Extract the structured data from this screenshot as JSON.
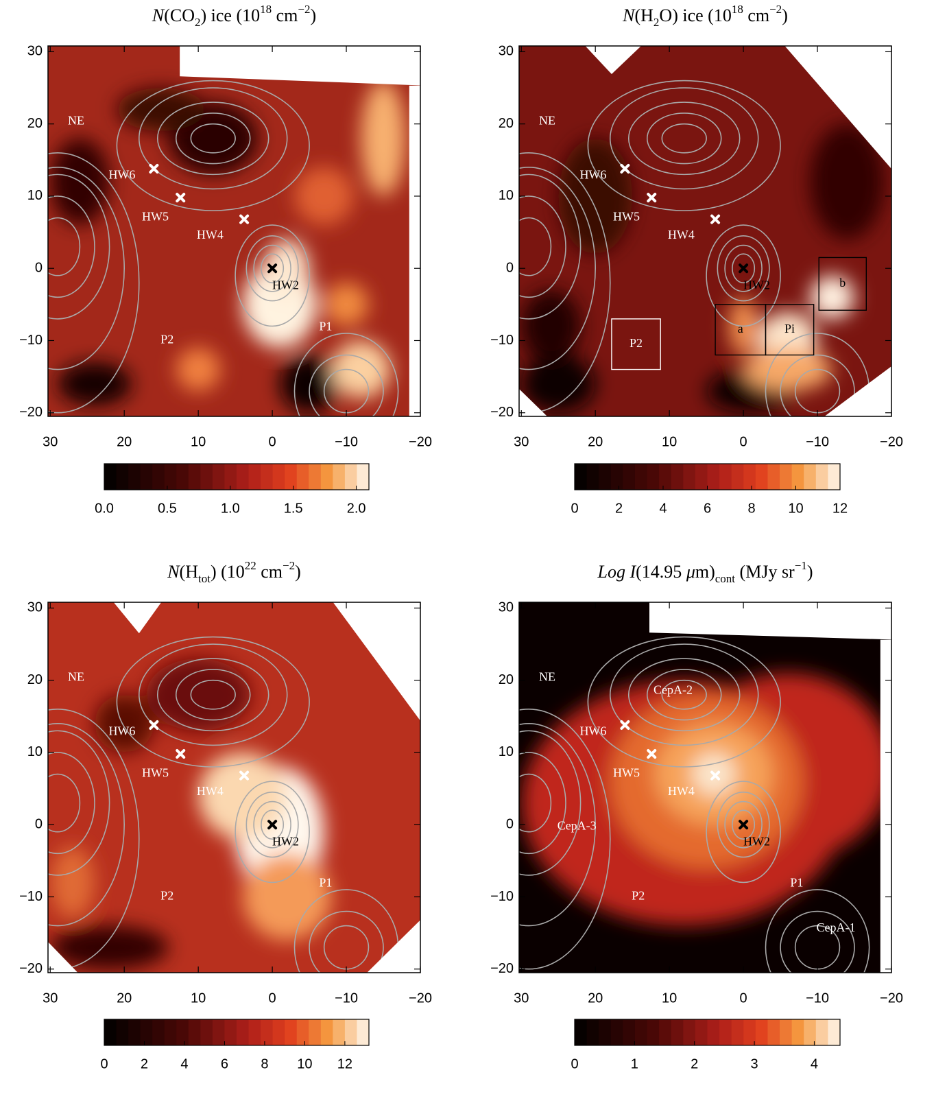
{
  "chart_data": [
    {
      "type": "heatmap",
      "title": [
        {
          "text": "N",
          "style": "italic"
        },
        {
          "text": "(CO",
          "style": "normal"
        },
        {
          "text": "2",
          "style": "sub"
        },
        {
          "text": ") ice (10",
          "style": "normal"
        },
        {
          "text": "18",
          "style": "sup"
        },
        {
          "text": " cm",
          "style": "normal"
        },
        {
          "text": "−2",
          "style": "sup"
        },
        {
          "text": ")",
          "style": "normal"
        }
      ],
      "xlim": [
        30.3,
        -20.0
      ],
      "ylim": [
        -20.5,
        30.8
      ],
      "xticks": [
        30,
        20,
        10,
        0,
        {
          "value": -10,
          "label": "−10"
        },
        {
          "value": -20,
          "label": "−20"
        }
      ],
      "yticks": [
        30,
        20,
        10,
        0,
        {
          "value": -10,
          "label": "−10"
        },
        {
          "value": -20,
          "label": "−20"
        }
      ],
      "colorbar": {
        "lim": [
          0,
          2.1
        ],
        "ticks": [
          {
            "value": 0,
            "label": "0.0"
          },
          0.5,
          {
            "value": 1,
            "label": "1.0"
          },
          1.5,
          {
            "value": 2,
            "label": "2.0"
          }
        ]
      },
      "markers": [
        {
          "x": 0,
          "y": 0,
          "color": "#000000"
        },
        {
          "x": 3.8,
          "y": 6.8,
          "color": "#ffffff"
        },
        {
          "x": 12.4,
          "y": 9.8,
          "color": "#ffffff"
        },
        {
          "x": 16,
          "y": 13.8,
          "color": "#ffffff"
        }
      ],
      "labels": [
        {
          "text": "NE",
          "x": 26.5,
          "y": 20.3,
          "color": "#ffffff"
        },
        {
          "text": "HW6",
          "x": 20.3,
          "y": 12.8,
          "color": "#ffffff"
        },
        {
          "text": "HW5",
          "x": 15.8,
          "y": 7,
          "color": "#ffffff"
        },
        {
          "text": "HW4",
          "x": 8.4,
          "y": 4.5,
          "color": "#ffffff"
        },
        {
          "text": "HW2",
          "x": -1.8,
          "y": -2.5,
          "color": "#000000"
        },
        {
          "text": "P2",
          "x": 14.2,
          "y": -10,
          "color": "#ffffff"
        },
        {
          "text": "P1",
          "x": -7.2,
          "y": -8.2,
          "color": "#ffffff"
        }
      ],
      "boxes": []
    },
    {
      "type": "heatmap",
      "title": [
        {
          "text": "N",
          "style": "italic"
        },
        {
          "text": "(H",
          "style": "normal"
        },
        {
          "text": "2",
          "style": "sub"
        },
        {
          "text": "O) ice (10",
          "style": "normal"
        },
        {
          "text": "18",
          "style": "sup"
        },
        {
          "text": " cm",
          "style": "normal"
        },
        {
          "text": "−2",
          "style": "sup"
        },
        {
          "text": ")",
          "style": "normal"
        }
      ],
      "xlim": [
        30.3,
        -20.0
      ],
      "ylim": [
        -20.5,
        30.8
      ],
      "xticks": [
        30,
        20,
        10,
        0,
        {
          "value": -10,
          "label": "−10"
        },
        {
          "value": -20,
          "label": "−20"
        }
      ],
      "yticks": [
        30,
        20,
        10,
        0,
        {
          "value": -10,
          "label": "−10"
        },
        {
          "value": -20,
          "label": "−20"
        }
      ],
      "colorbar": {
        "lim": [
          0,
          12
        ],
        "ticks": [
          0,
          2,
          4,
          6,
          8,
          10,
          12
        ]
      },
      "markers": [
        {
          "x": 0,
          "y": 0,
          "color": "#000000"
        },
        {
          "x": 3.8,
          "y": 6.8,
          "color": "#ffffff"
        },
        {
          "x": 12.4,
          "y": 9.8,
          "color": "#ffffff"
        },
        {
          "x": 16,
          "y": 13.8,
          "color": "#ffffff"
        }
      ],
      "labels": [
        {
          "text": "NE",
          "x": 26.5,
          "y": 20.3,
          "color": "#ffffff"
        },
        {
          "text": "HW6",
          "x": 20.3,
          "y": 12.8,
          "color": "#ffffff"
        },
        {
          "text": "HW5",
          "x": 15.8,
          "y": 7,
          "color": "#ffffff"
        },
        {
          "text": "HW4",
          "x": 8.4,
          "y": 4.5,
          "color": "#ffffff"
        },
        {
          "text": "HW2",
          "x": -1.8,
          "y": -2.5,
          "color": "#000000"
        }
      ],
      "boxes": [
        {
          "label": "P2",
          "x": [
            17.8,
            11.2
          ],
          "y": [
            -7,
            -14
          ],
          "color": "#ffffff"
        },
        {
          "label": "a",
          "x": [
            3.8,
            -3
          ],
          "y": [
            -5,
            -12
          ],
          "color": "#000000"
        },
        {
          "label": "Pi",
          "x": [
            -3,
            -9.5
          ],
          "y": [
            -5,
            -12
          ],
          "color": "#000000"
        },
        {
          "label": "b",
          "x": [
            -10.2,
            -16.6
          ],
          "y": [
            1.5,
            -5.8
          ],
          "color": "#000000"
        }
      ]
    },
    {
      "type": "heatmap",
      "title": [
        {
          "text": "N",
          "style": "italic"
        },
        {
          "text": "(H",
          "style": "normal"
        },
        {
          "text": "tot",
          "style": "sub"
        },
        {
          "text": ") (10",
          "style": "normal"
        },
        {
          "text": "22",
          "style": "sup"
        },
        {
          "text": " cm",
          "style": "normal"
        },
        {
          "text": "−2",
          "style": "sup"
        },
        {
          "text": ")",
          "style": "normal"
        }
      ],
      "xlim": [
        30.3,
        -20.0
      ],
      "ylim": [
        -20.5,
        30.8
      ],
      "xticks": [
        30,
        20,
        10,
        0,
        {
          "value": -10,
          "label": "−10"
        },
        {
          "value": -20,
          "label": "−20"
        }
      ],
      "yticks": [
        30,
        20,
        10,
        0,
        {
          "value": -10,
          "label": "−10"
        },
        {
          "value": -20,
          "label": "−20"
        }
      ],
      "colorbar": {
        "lim": [
          0,
          13.2
        ],
        "ticks": [
          0,
          2,
          4,
          6,
          8,
          10,
          12
        ]
      },
      "markers": [
        {
          "x": 0,
          "y": 0,
          "color": "#000000"
        },
        {
          "x": 3.8,
          "y": 6.8,
          "color": "#ffffff"
        },
        {
          "x": 12.4,
          "y": 9.8,
          "color": "#ffffff"
        },
        {
          "x": 16,
          "y": 13.8,
          "color": "#ffffff"
        }
      ],
      "labels": [
        {
          "text": "NE",
          "x": 26.5,
          "y": 20.3,
          "color": "#ffffff"
        },
        {
          "text": "HW6",
          "x": 20.3,
          "y": 12.8,
          "color": "#ffffff"
        },
        {
          "text": "HW5",
          "x": 15.8,
          "y": 7,
          "color": "#ffffff"
        },
        {
          "text": "HW4",
          "x": 8.4,
          "y": 4.5,
          "color": "#ffffff"
        },
        {
          "text": "HW2",
          "x": -1.8,
          "y": -2.5,
          "color": "#000000"
        },
        {
          "text": "P2",
          "x": 14.2,
          "y": -10,
          "color": "#ffffff"
        },
        {
          "text": "P1",
          "x": -7.2,
          "y": -8.2,
          "color": "#ffffff"
        }
      ],
      "boxes": []
    },
    {
      "type": "heatmap",
      "title": [
        {
          "text": "Log I",
          "style": "italic"
        },
        {
          "text": "(14.95 ",
          "style": "normal"
        },
        {
          "text": "μ",
          "style": "italic"
        },
        {
          "text": "m)",
          "style": "normal"
        },
        {
          "text": "cont",
          "style": "sub"
        },
        {
          "text": " (MJy sr",
          "style": "normal"
        },
        {
          "text": "−1",
          "style": "sup"
        },
        {
          "text": ")",
          "style": "normal"
        }
      ],
      "xlim": [
        30.3,
        -20.0
      ],
      "ylim": [
        -20.5,
        30.8
      ],
      "xticks": [
        30,
        20,
        10,
        0,
        {
          "value": -10,
          "label": "−10"
        },
        {
          "value": -20,
          "label": "−20"
        }
      ],
      "yticks": [
        30,
        20,
        10,
        0,
        {
          "value": -10,
          "label": "−10"
        },
        {
          "value": -20,
          "label": "−20"
        }
      ],
      "colorbar": {
        "lim": [
          0,
          4.43
        ],
        "ticks": [
          0,
          1,
          2,
          3,
          4
        ]
      },
      "markers": [
        {
          "x": 0,
          "y": 0,
          "color": "#000000"
        },
        {
          "x": 3.8,
          "y": 6.8,
          "color": "#ffffff"
        },
        {
          "x": 12.4,
          "y": 9.8,
          "color": "#ffffff"
        },
        {
          "x": 16,
          "y": 13.8,
          "color": "#ffffff"
        }
      ],
      "labels": [
        {
          "text": "NE",
          "x": 26.5,
          "y": 20.3,
          "color": "#ffffff"
        },
        {
          "text": "HW6",
          "x": 20.3,
          "y": 12.8,
          "color": "#ffffff"
        },
        {
          "text": "HW5",
          "x": 15.8,
          "y": 7,
          "color": "#ffffff"
        },
        {
          "text": "HW4",
          "x": 8.4,
          "y": 4.5,
          "color": "#ffffff"
        },
        {
          "text": "HW2",
          "x": -1.8,
          "y": -2.5,
          "color": "#000000"
        },
        {
          "text": "P2",
          "x": 14.2,
          "y": -10,
          "color": "#ffffff"
        },
        {
          "text": "P1",
          "x": -7.2,
          "y": -8.2,
          "color": "#ffffff"
        },
        {
          "text": "CepA-2",
          "x": 9.5,
          "y": 18.5,
          "color": "#ffffff"
        },
        {
          "text": "CepA-3",
          "x": 22.5,
          "y": -0.3,
          "color": "#ffffff"
        },
        {
          "text": "CepA-1",
          "x": -12.5,
          "y": -14.4,
          "color": "#ffffff"
        }
      ],
      "boxes": []
    }
  ]
}
